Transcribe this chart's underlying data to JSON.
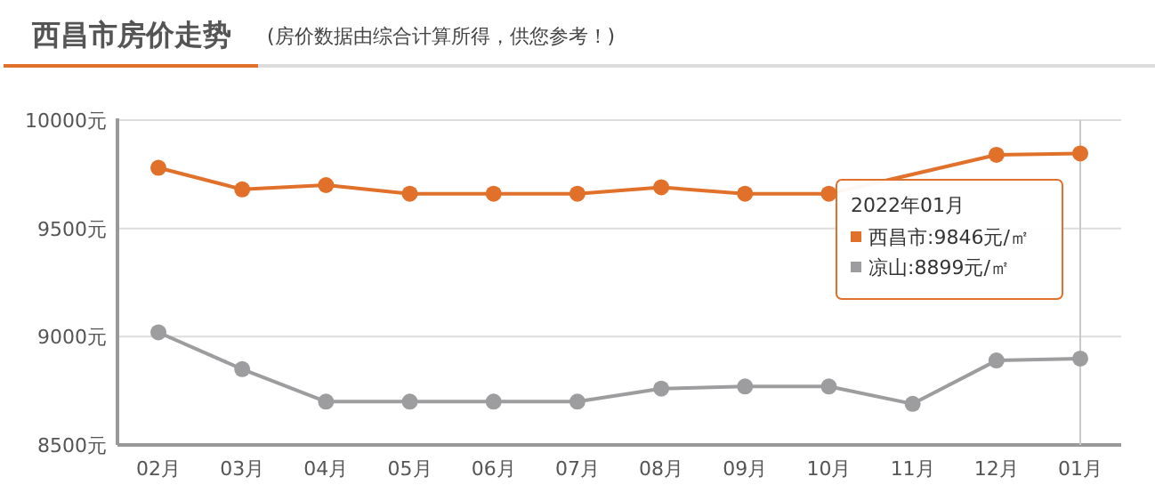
{
  "chart_data": {
    "type": "line",
    "title": "西昌市房价走势",
    "subtitle": "(房价数据由综合计算所得，供您参考！)",
    "categories": [
      "02月",
      "03月",
      "04月",
      "05月",
      "06月",
      "07月",
      "08月",
      "09月",
      "10月",
      "11月",
      "12月",
      "01月"
    ],
    "series": [
      {
        "name": "西昌市",
        "color": "#e0702a",
        "values": [
          9780,
          9680,
          9700,
          9660,
          9660,
          9660,
          9690,
          9660,
          9660,
          null,
          9840,
          9846
        ],
        "value_labels": [
          null,
          null,
          null,
          null,
          null,
          null,
          null,
          null,
          null,
          null,
          null,
          ":9846元/㎡"
        ]
      },
      {
        "name": "凉山",
        "color": "#9d9d9f",
        "values": [
          9020,
          8850,
          8700,
          8700,
          8700,
          8700,
          8760,
          8770,
          8770,
          8690,
          8890,
          8899
        ],
        "value_labels": [
          null,
          null,
          null,
          null,
          null,
          null,
          null,
          null,
          null,
          null,
          null,
          ":8899元/㎡"
        ]
      }
    ],
    "ylim": [
      8500,
      10000
    ],
    "yticks": [
      {
        "value": 8500,
        "label": "8500元"
      },
      {
        "value": 9000,
        "label": "9000元"
      },
      {
        "value": 9500,
        "label": "9500元"
      },
      {
        "value": 10000,
        "label": "10000元"
      }
    ],
    "grid": "y",
    "marker": "circle",
    "line_style": "solid",
    "ref_lines": [
      {
        "axis": "x",
        "value": "01月",
        "color": "#c8c8c8"
      }
    ],
    "annotations": [
      "2022年01月"
    ]
  }
}
